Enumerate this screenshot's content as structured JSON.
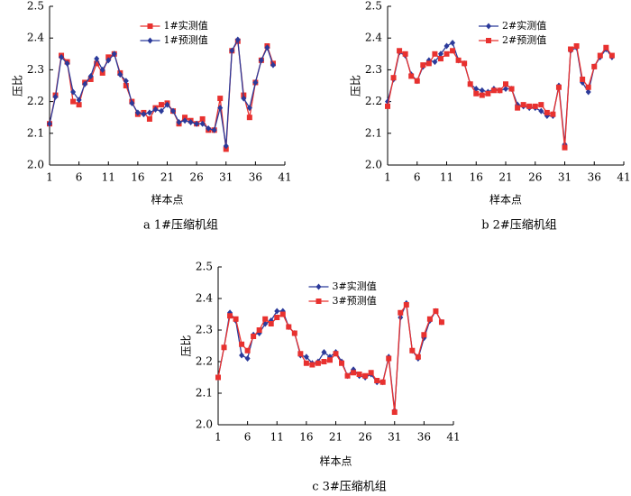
{
  "chart_data": [
    {
      "type": "line",
      "x_label": "样本点",
      "y_label": "压比",
      "caption": "a 1#压缩机组",
      "x": [
        1,
        2,
        3,
        4,
        5,
        6,
        7,
        8,
        9,
        10,
        11,
        12,
        13,
        14,
        15,
        16,
        17,
        18,
        19,
        20,
        21,
        22,
        23,
        24,
        25,
        26,
        27,
        28,
        29,
        30,
        31,
        32,
        33,
        34,
        35,
        36,
        37,
        38,
        39
      ],
      "series": [
        {
          "name": "1#实测值",
          "color": "#e8312f",
          "marker": "square",
          "values": [
            2.13,
            2.22,
            2.345,
            2.325,
            2.2,
            2.19,
            2.26,
            2.27,
            2.32,
            2.29,
            2.34,
            2.35,
            2.29,
            2.25,
            2.2,
            2.16,
            2.165,
            2.145,
            2.18,
            2.19,
            2.195,
            2.17,
            2.13,
            2.15,
            2.14,
            2.13,
            2.145,
            2.11,
            2.11,
            2.21,
            2.05,
            2.36,
            2.39,
            2.22,
            2.15,
            2.26,
            2.33,
            2.375,
            2.32
          ]
        },
        {
          "name": "1#预测值",
          "color": "#2b3a9a",
          "marker": "diamond",
          "values": [
            2.13,
            2.215,
            2.34,
            2.32,
            2.23,
            2.205,
            2.255,
            2.28,
            2.335,
            2.3,
            2.33,
            2.35,
            2.285,
            2.265,
            2.195,
            2.165,
            2.16,
            2.165,
            2.175,
            2.17,
            2.19,
            2.17,
            2.135,
            2.14,
            2.135,
            2.13,
            2.13,
            2.115,
            2.11,
            2.18,
            2.06,
            2.36,
            2.395,
            2.21,
            2.18,
            2.26,
            2.33,
            2.37,
            2.315
          ]
        }
      ],
      "xlim": [
        1,
        41
      ],
      "xticks": [
        1,
        6,
        11,
        16,
        21,
        26,
        31,
        36,
        41
      ],
      "ylim": [
        2.0,
        2.5
      ],
      "yticks": [
        {
          "value": 2.0,
          "label": "2.0"
        },
        2.1,
        2.2,
        2.3,
        2.4,
        2.5
      ],
      "legend": "upper center"
    },
    {
      "type": "line",
      "x_label": "样本点",
      "y_label": "压比",
      "caption": "b 2#压缩机组",
      "x": [
        1,
        2,
        3,
        4,
        5,
        6,
        7,
        8,
        9,
        10,
        11,
        12,
        13,
        14,
        15,
        16,
        17,
        18,
        19,
        20,
        21,
        22,
        23,
        24,
        25,
        26,
        27,
        28,
        29,
        30,
        31,
        32,
        33,
        34,
        35,
        36,
        37,
        38,
        39
      ],
      "series": [
        {
          "name": "2#实测值",
          "color": "#2b3a9a",
          "marker": "diamond",
          "values": [
            2.2,
            2.27,
            2.355,
            2.345,
            2.285,
            2.265,
            2.31,
            2.33,
            2.325,
            2.35,
            2.375,
            2.385,
            2.33,
            2.32,
            2.255,
            2.24,
            2.235,
            2.23,
            2.24,
            2.235,
            2.24,
            2.24,
            2.19,
            2.185,
            2.18,
            2.18,
            2.17,
            2.155,
            2.155,
            2.25,
            2.065,
            2.36,
            2.37,
            2.26,
            2.23,
            2.31,
            2.34,
            2.365,
            2.34
          ]
        },
        {
          "name": "2#预测值",
          "color": "#e8312f",
          "marker": "square",
          "values": [
            2.185,
            2.275,
            2.36,
            2.35,
            2.28,
            2.265,
            2.315,
            2.32,
            2.35,
            2.335,
            2.35,
            2.36,
            2.33,
            2.32,
            2.255,
            2.225,
            2.22,
            2.225,
            2.235,
            2.235,
            2.255,
            2.24,
            2.18,
            2.19,
            2.185,
            2.185,
            2.19,
            2.165,
            2.16,
            2.245,
            2.055,
            2.365,
            2.375,
            2.27,
            2.245,
            2.31,
            2.345,
            2.37,
            2.345
          ]
        }
      ],
      "xlim": [
        1,
        41
      ],
      "xticks": [
        1,
        6,
        11,
        16,
        21,
        26,
        31,
        36,
        41
      ],
      "ylim": [
        2.0,
        2.5
      ],
      "yticks": [
        {
          "value": 2.0,
          "label": "2.0"
        },
        2.1,
        2.2,
        2.3,
        2.4,
        2.5
      ],
      "legend": "upper center"
    },
    {
      "type": "line",
      "x_label": "样本点",
      "y_label": "压比",
      "caption": "c 3#压缩机组",
      "x": [
        1,
        2,
        3,
        4,
        5,
        6,
        7,
        8,
        9,
        10,
        11,
        12,
        13,
        14,
        15,
        16,
        17,
        18,
        19,
        20,
        21,
        22,
        23,
        24,
        25,
        26,
        27,
        28,
        29,
        30,
        31,
        32,
        33,
        34,
        35,
        36,
        37,
        38,
        39
      ],
      "series": [
        {
          "name": "3#实测值",
          "color": "#2b3a9a",
          "marker": "diamond",
          "values": [
            2.15,
            2.245,
            2.355,
            2.33,
            2.22,
            2.21,
            2.285,
            2.29,
            2.32,
            2.33,
            2.36,
            2.36,
            2.31,
            2.29,
            2.22,
            2.215,
            2.195,
            2.2,
            2.23,
            2.215,
            2.23,
            2.2,
            2.155,
            2.175,
            2.155,
            2.15,
            2.16,
            2.135,
            2.135,
            2.215,
            2.045,
            2.34,
            2.385,
            2.235,
            2.21,
            2.275,
            2.33,
            2.36,
            2.325
          ]
        },
        {
          "name": "3#预测值",
          "color": "#e8312f",
          "marker": "square",
          "values": [
            2.15,
            2.245,
            2.345,
            2.335,
            2.255,
            2.235,
            2.28,
            2.3,
            2.335,
            2.32,
            2.34,
            2.35,
            2.31,
            2.29,
            2.225,
            2.195,
            2.19,
            2.195,
            2.2,
            2.205,
            2.225,
            2.195,
            2.155,
            2.165,
            2.16,
            2.155,
            2.165,
            2.14,
            2.135,
            2.21,
            2.04,
            2.355,
            2.38,
            2.235,
            2.215,
            2.285,
            2.335,
            2.36,
            2.325
          ]
        }
      ],
      "xlim": [
        1,
        41
      ],
      "xticks": [
        1,
        6,
        11,
        16,
        21,
        26,
        31,
        36,
        41
      ],
      "ylim": [
        2.0,
        2.5
      ],
      "yticks": [
        {
          "value": 2.0,
          "label": "2.0"
        },
        2.1,
        2.2,
        2.3,
        2.4,
        2.5
      ],
      "legend": "upper center"
    }
  ]
}
